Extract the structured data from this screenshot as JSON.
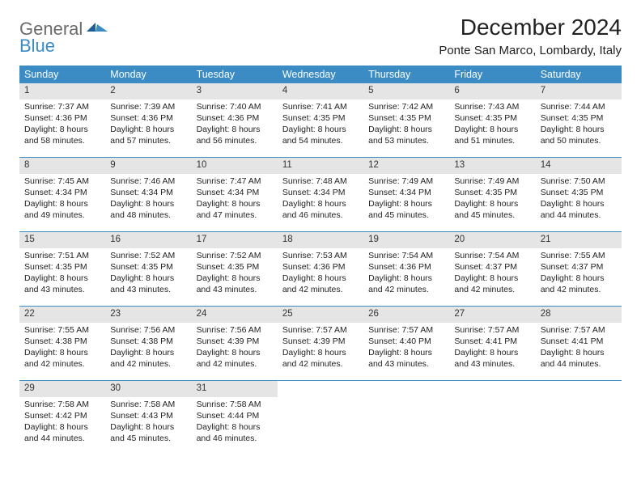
{
  "brand": {
    "line1": "General",
    "line2": "Blue"
  },
  "title": "December 2024",
  "location": "Ponte San Marco, Lombardy, Italy",
  "colors": {
    "header_bg": "#3b8bc4",
    "header_fg": "#ffffff",
    "daynum_bg": "#e5e5e5",
    "logo_gray": "#6b6b6b",
    "logo_blue": "#3b8bc4",
    "week_border": "#3b8bc4"
  },
  "day_headers": [
    "Sunday",
    "Monday",
    "Tuesday",
    "Wednesday",
    "Thursday",
    "Friday",
    "Saturday"
  ],
  "days": [
    {
      "n": 1,
      "sunrise": "7:37 AM",
      "sunset": "4:36 PM",
      "dl": "8 hours and 58 minutes."
    },
    {
      "n": 2,
      "sunrise": "7:39 AM",
      "sunset": "4:36 PM",
      "dl": "8 hours and 57 minutes."
    },
    {
      "n": 3,
      "sunrise": "7:40 AM",
      "sunset": "4:36 PM",
      "dl": "8 hours and 56 minutes."
    },
    {
      "n": 4,
      "sunrise": "7:41 AM",
      "sunset": "4:35 PM",
      "dl": "8 hours and 54 minutes."
    },
    {
      "n": 5,
      "sunrise": "7:42 AM",
      "sunset": "4:35 PM",
      "dl": "8 hours and 53 minutes."
    },
    {
      "n": 6,
      "sunrise": "7:43 AM",
      "sunset": "4:35 PM",
      "dl": "8 hours and 51 minutes."
    },
    {
      "n": 7,
      "sunrise": "7:44 AM",
      "sunset": "4:35 PM",
      "dl": "8 hours and 50 minutes."
    },
    {
      "n": 8,
      "sunrise": "7:45 AM",
      "sunset": "4:34 PM",
      "dl": "8 hours and 49 minutes."
    },
    {
      "n": 9,
      "sunrise": "7:46 AM",
      "sunset": "4:34 PM",
      "dl": "8 hours and 48 minutes."
    },
    {
      "n": 10,
      "sunrise": "7:47 AM",
      "sunset": "4:34 PM",
      "dl": "8 hours and 47 minutes."
    },
    {
      "n": 11,
      "sunrise": "7:48 AM",
      "sunset": "4:34 PM",
      "dl": "8 hours and 46 minutes."
    },
    {
      "n": 12,
      "sunrise": "7:49 AM",
      "sunset": "4:34 PM",
      "dl": "8 hours and 45 minutes."
    },
    {
      "n": 13,
      "sunrise": "7:49 AM",
      "sunset": "4:35 PM",
      "dl": "8 hours and 45 minutes."
    },
    {
      "n": 14,
      "sunrise": "7:50 AM",
      "sunset": "4:35 PM",
      "dl": "8 hours and 44 minutes."
    },
    {
      "n": 15,
      "sunrise": "7:51 AM",
      "sunset": "4:35 PM",
      "dl": "8 hours and 43 minutes."
    },
    {
      "n": 16,
      "sunrise": "7:52 AM",
      "sunset": "4:35 PM",
      "dl": "8 hours and 43 minutes."
    },
    {
      "n": 17,
      "sunrise": "7:52 AM",
      "sunset": "4:35 PM",
      "dl": "8 hours and 43 minutes."
    },
    {
      "n": 18,
      "sunrise": "7:53 AM",
      "sunset": "4:36 PM",
      "dl": "8 hours and 42 minutes."
    },
    {
      "n": 19,
      "sunrise": "7:54 AM",
      "sunset": "4:36 PM",
      "dl": "8 hours and 42 minutes."
    },
    {
      "n": 20,
      "sunrise": "7:54 AM",
      "sunset": "4:37 PM",
      "dl": "8 hours and 42 minutes."
    },
    {
      "n": 21,
      "sunrise": "7:55 AM",
      "sunset": "4:37 PM",
      "dl": "8 hours and 42 minutes."
    },
    {
      "n": 22,
      "sunrise": "7:55 AM",
      "sunset": "4:38 PM",
      "dl": "8 hours and 42 minutes."
    },
    {
      "n": 23,
      "sunrise": "7:56 AM",
      "sunset": "4:38 PM",
      "dl": "8 hours and 42 minutes."
    },
    {
      "n": 24,
      "sunrise": "7:56 AM",
      "sunset": "4:39 PM",
      "dl": "8 hours and 42 minutes."
    },
    {
      "n": 25,
      "sunrise": "7:57 AM",
      "sunset": "4:39 PM",
      "dl": "8 hours and 42 minutes."
    },
    {
      "n": 26,
      "sunrise": "7:57 AM",
      "sunset": "4:40 PM",
      "dl": "8 hours and 43 minutes."
    },
    {
      "n": 27,
      "sunrise": "7:57 AM",
      "sunset": "4:41 PM",
      "dl": "8 hours and 43 minutes."
    },
    {
      "n": 28,
      "sunrise": "7:57 AM",
      "sunset": "4:41 PM",
      "dl": "8 hours and 44 minutes."
    },
    {
      "n": 29,
      "sunrise": "7:58 AM",
      "sunset": "4:42 PM",
      "dl": "8 hours and 44 minutes."
    },
    {
      "n": 30,
      "sunrise": "7:58 AM",
      "sunset": "4:43 PM",
      "dl": "8 hours and 45 minutes."
    },
    {
      "n": 31,
      "sunrise": "7:58 AM",
      "sunset": "4:44 PM",
      "dl": "8 hours and 46 minutes."
    }
  ],
  "labels": {
    "sunrise": "Sunrise:",
    "sunset": "Sunset:",
    "daylight": "Daylight:"
  },
  "start_weekday": 0,
  "columns": 7
}
